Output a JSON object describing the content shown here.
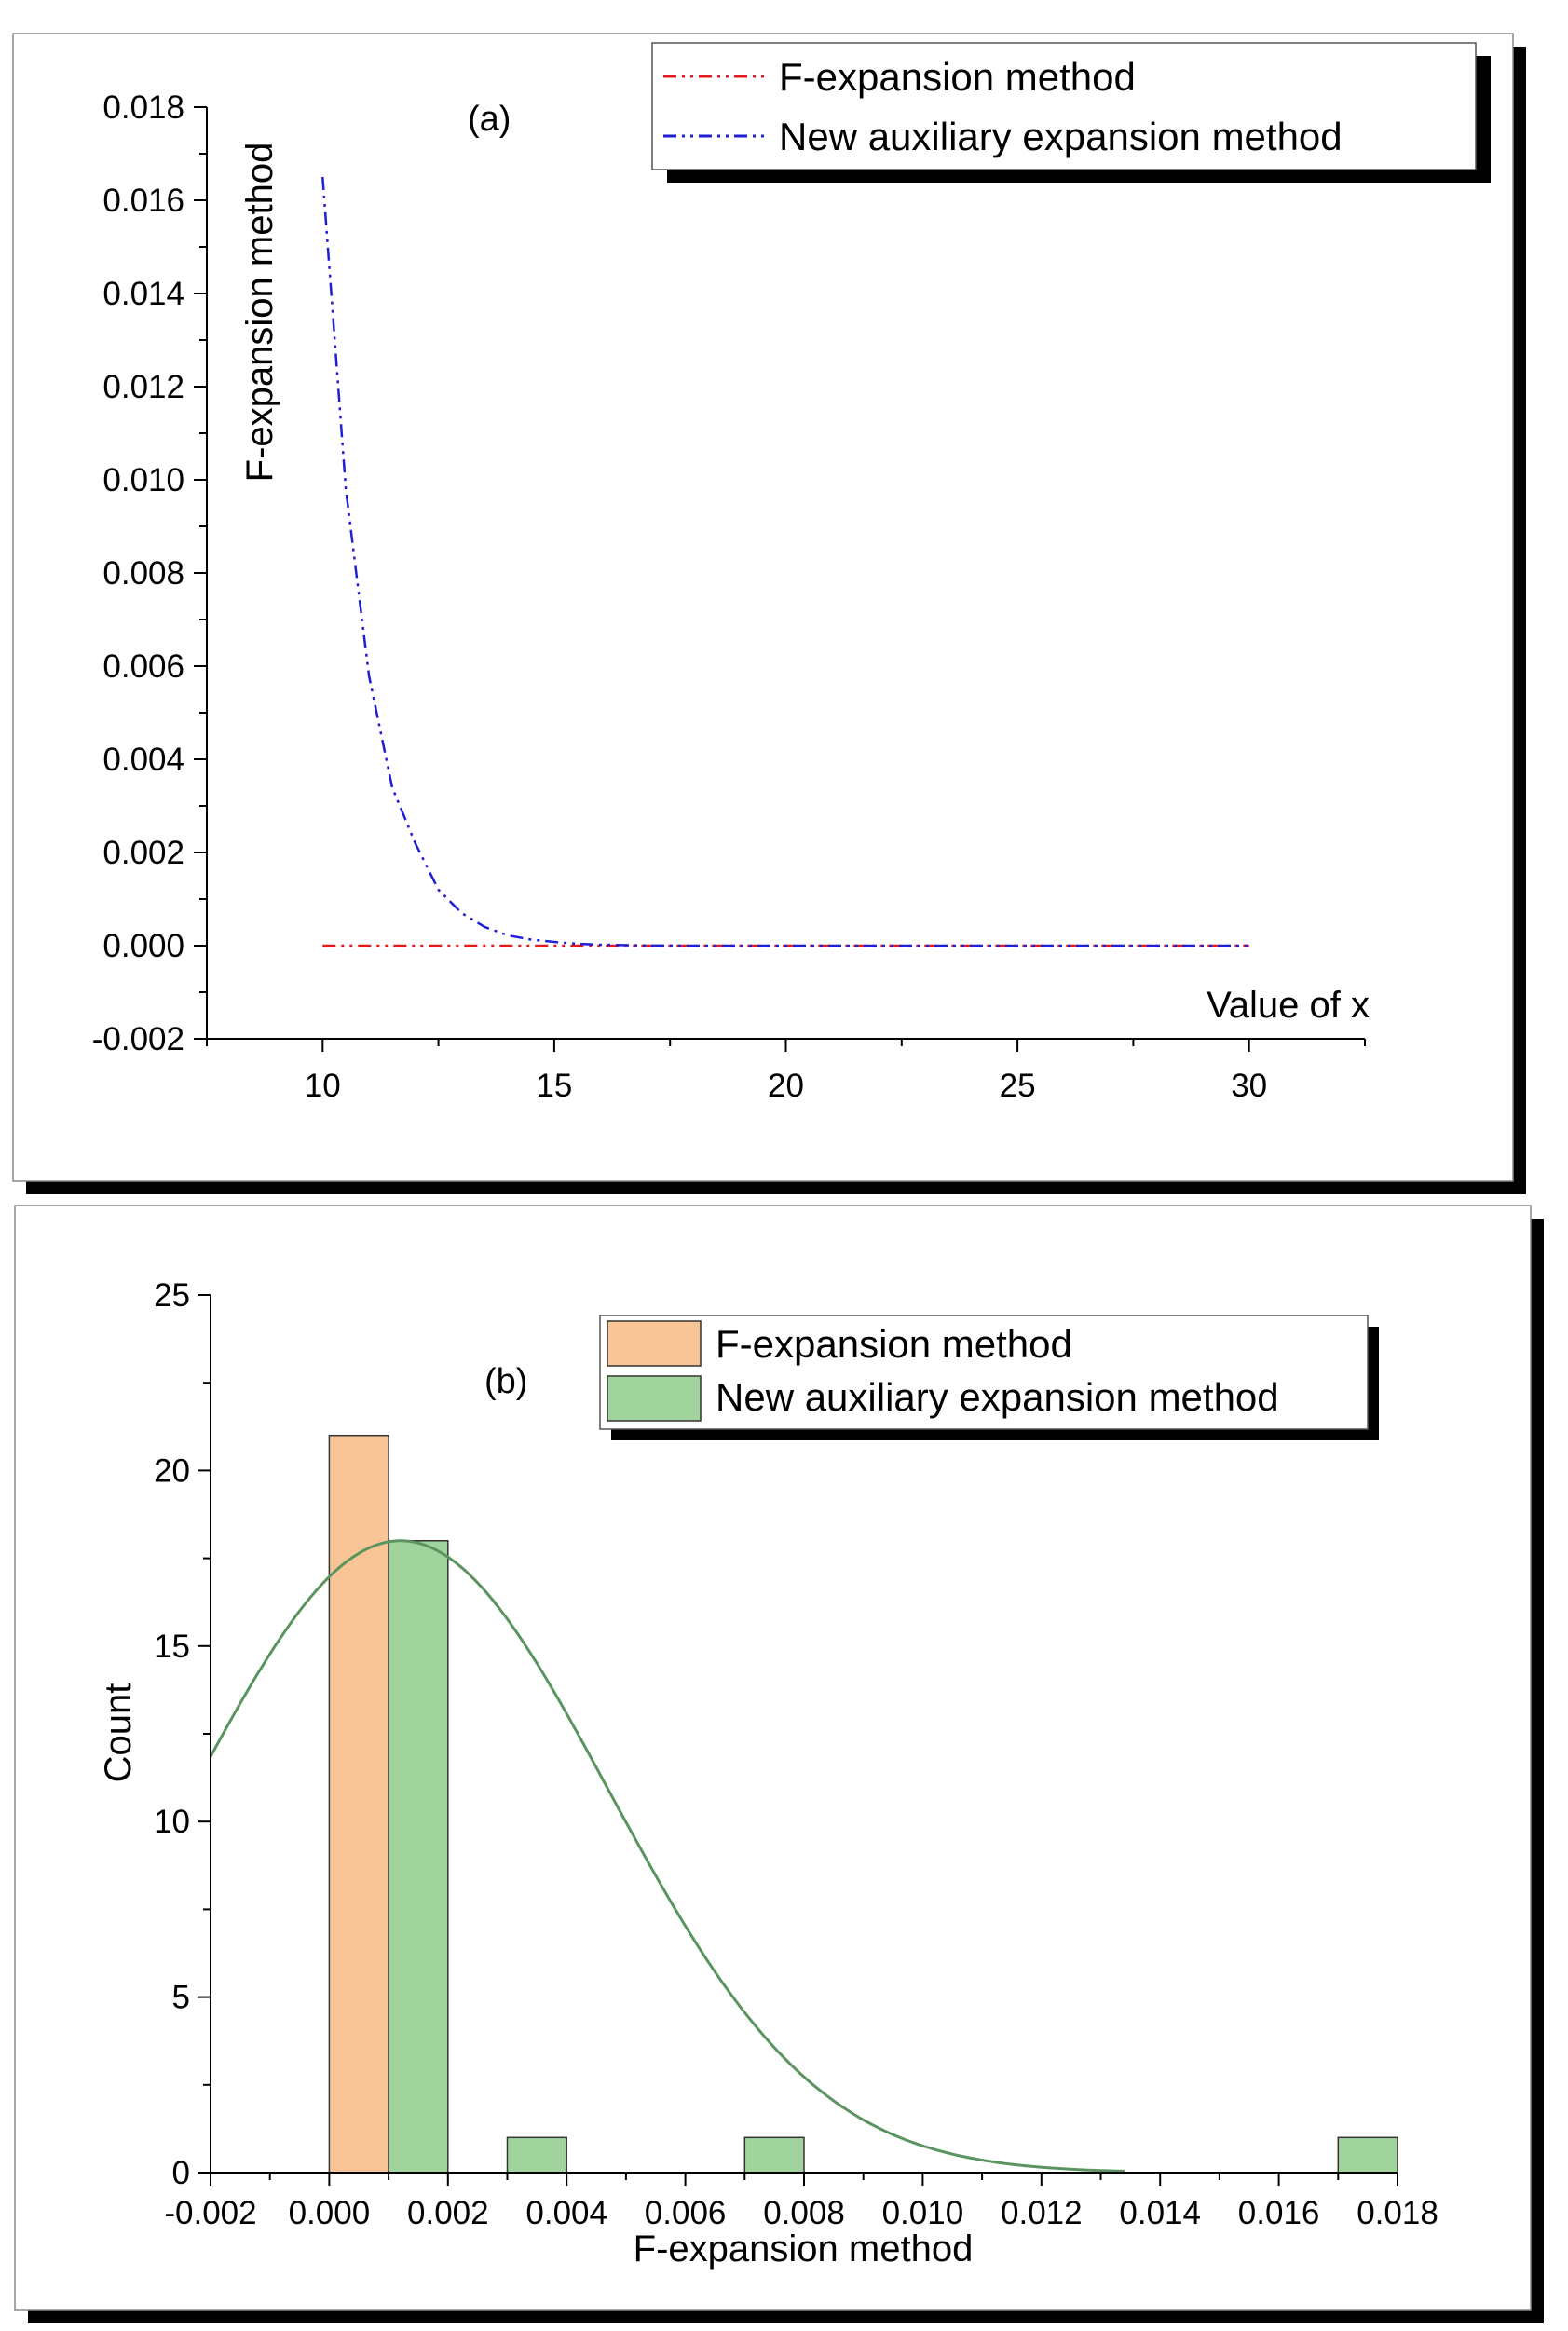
{
  "chart_data": [
    {
      "type": "line",
      "panel_label": "(a)",
      "xlabel": "Value of x",
      "ylabel": "F-expansion method",
      "xlim": [
        7.5,
        32.5
      ],
      "ylim": [
        -0.002,
        0.018
      ],
      "xticks": [
        10,
        15,
        20,
        25,
        30
      ],
      "yticks": [
        -0.002,
        0.0,
        0.002,
        0.004,
        0.006,
        0.008,
        0.01,
        0.012,
        0.014,
        0.016,
        0.018
      ],
      "xtick_labels": [
        "10",
        "15",
        "20",
        "25",
        "30"
      ],
      "ytick_labels": [
        "-0.002",
        "0.000",
        "0.002",
        "0.004",
        "0.006",
        "0.008",
        "0.010",
        "0.012",
        "0.014",
        "0.016",
        "0.018"
      ],
      "legend_position": "top-right",
      "series": [
        {
          "name": "F-expansion method",
          "color": "#e31a1c",
          "x": [
            10,
            15,
            20,
            25,
            30
          ],
          "y": [
            0,
            0,
            0,
            0,
            0
          ]
        },
        {
          "name": "New auxiliary expansion method",
          "color": "#1f1fd6",
          "x": [
            10,
            10.5,
            11,
            11.5,
            12,
            12.5,
            13,
            13.5,
            14,
            14.5,
            15,
            15.5,
            16,
            17,
            18,
            20,
            25,
            30
          ],
          "y": [
            0.0165,
            0.0098,
            0.0058,
            0.0034,
            0.0022,
            0.0012,
            0.0007,
            0.0004,
            0.00022,
            0.00013,
            8e-05,
            4e-05,
            2e-05,
            5e-06,
            0,
            0,
            0,
            0
          ]
        }
      ]
    },
    {
      "type": "bar",
      "subtype": "histogram",
      "panel_label": "(b)",
      "xlabel": "F-expansion method",
      "ylabel": "Count",
      "xlim": [
        -0.002,
        0.018
      ],
      "ylim": [
        0,
        25
      ],
      "xticks": [
        -0.002,
        0.0,
        0.002,
        0.004,
        0.006,
        0.008,
        0.01,
        0.012,
        0.014,
        0.016,
        0.018
      ],
      "yticks": [
        0,
        5,
        10,
        15,
        20,
        25
      ],
      "xtick_labels": [
        "-0.002",
        "0.000",
        "0.002",
        "0.004",
        "0.006",
        "0.008",
        "0.010",
        "0.012",
        "0.014",
        "0.016",
        "0.018"
      ],
      "ytick_labels": [
        "0",
        "5",
        "10",
        "15",
        "20",
        "25"
      ],
      "legend_position": "top-right",
      "series": [
        {
          "name": "F-expansion method",
          "color": "#f9c596",
          "bins": [
            [
              0.0,
              0.001,
              21
            ]
          ]
        },
        {
          "name": "New auxiliary expansion method",
          "color": "#a1d49c",
          "bins": [
            [
              0.001,
              0.002,
              18
            ],
            [
              0.003,
              0.004,
              1
            ],
            [
              0.007,
              0.008,
              1
            ],
            [
              0.017,
              0.018,
              1
            ]
          ]
        }
      ],
      "fit_curve": {
        "type": "normal",
        "color": "#5b9460",
        "mean": 0.0012,
        "sigma": 0.0035,
        "peak": 18,
        "x_range": [
          -0.002,
          0.0134
        ]
      }
    }
  ]
}
